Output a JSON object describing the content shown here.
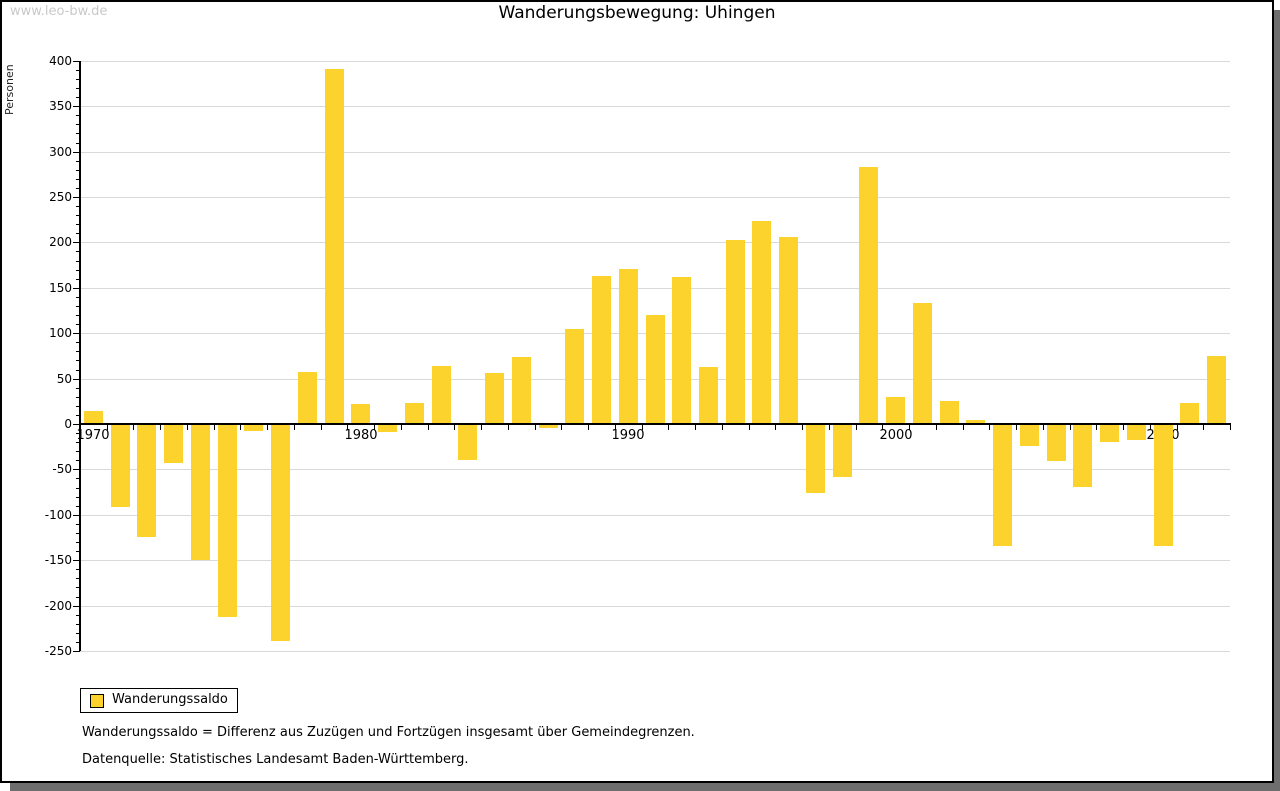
{
  "watermark": "www.leo-bw.de",
  "title": "Wanderungsbewegung: Uhingen",
  "y_axis_label": "Personen",
  "legend": {
    "label": "Wanderungssaldo",
    "swatch_color": "#FCD32D"
  },
  "footnotes": {
    "definition": "Wanderungssaldo = Differenz aus Zuzügen und Fortzügen insgesamt über Gemeindegrenzen.",
    "source": "Datenquelle: Statistisches Landesamt Baden-Württemberg."
  },
  "chart_data": {
    "type": "bar",
    "title": "Wanderungsbewegung: Uhingen",
    "xlabel": "",
    "ylabel": "Personen",
    "series_name": "Wanderungssaldo",
    "years": [
      1970,
      1971,
      1972,
      1973,
      1974,
      1975,
      1976,
      1977,
      1978,
      1979,
      1980,
      1981,
      1982,
      1983,
      1984,
      1985,
      1986,
      1987,
      1988,
      1989,
      1990,
      1991,
      1992,
      1993,
      1994,
      1995,
      1996,
      1997,
      1998,
      1999,
      2000,
      2001,
      2002,
      2003,
      2004,
      2005,
      2006,
      2007,
      2008,
      2009,
      2010,
      2011,
      2012
    ],
    "values": [
      13,
      -90,
      -123,
      -42,
      -149,
      -211,
      -7,
      -238,
      56,
      390,
      21,
      -8,
      22,
      63,
      -38,
      55,
      73,
      -3,
      103,
      162,
      170,
      119,
      161,
      62,
      202,
      222,
      205,
      -75,
      -57,
      282,
      29,
      132,
      24,
      3,
      -133,
      -23,
      -40,
      -68,
      -19,
      -17,
      -133,
      22,
      74
    ],
    "ylim": [
      -250,
      400
    ],
    "ytick_step": 50,
    "ytick_minor_step": 10,
    "xtick_labels": [
      "1970",
      "1980",
      "1990",
      "2000",
      "2010"
    ],
    "grid": "horizontal-major",
    "bar_color": "#FCD32D",
    "gridline_color": "#d9d9d9",
    "legend_position": "bottom-left"
  }
}
